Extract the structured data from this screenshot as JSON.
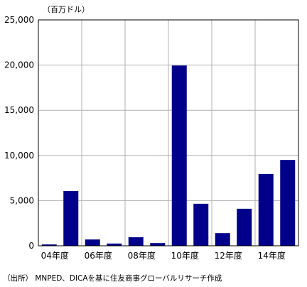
{
  "chart_data": {
    "type": "bar",
    "unit_label": "（百万ドル）",
    "categories": [
      "04",
      "05",
      "06",
      "07",
      "08",
      "09",
      "10",
      "11",
      "12",
      "13",
      "14",
      "15"
    ],
    "x_tick_labels": [
      "04年度",
      "06年度",
      "08年度",
      "10年度",
      "12年度",
      "14年度"
    ],
    "values": [
      150,
      6050,
      700,
      250,
      950,
      300,
      19950,
      4650,
      1400,
      4100,
      7950,
      9500
    ],
    "ylim": [
      0,
      25000
    ],
    "y_ticks": [
      0,
      5000,
      10000,
      15000,
      20000,
      25000
    ],
    "y_tick_labels": [
      "0",
      "5,000",
      "10,000",
      "15,000",
      "20,000",
      "25,000"
    ],
    "grid": true,
    "bar_color": "#00008b"
  },
  "source": "（出所） MNPED、DICAを基に住友商事グローバルリサーチ作成"
}
